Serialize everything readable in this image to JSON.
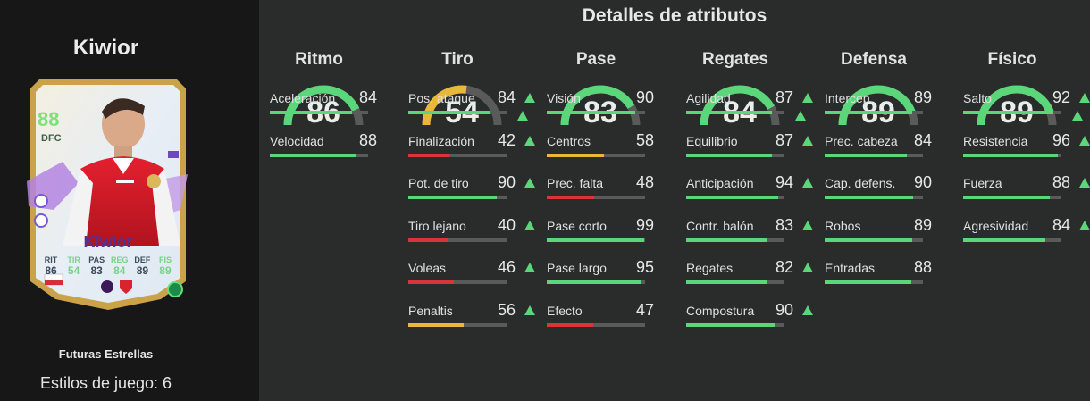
{
  "left": {
    "player_name": "Kiwior",
    "card": {
      "rating": "88",
      "position": "DFC",
      "name": "Kiwior",
      "stats": [
        {
          "label": "RIT",
          "value": "86"
        },
        {
          "label": "TIR",
          "value": "54"
        },
        {
          "label": "PAS",
          "value": "83"
        },
        {
          "label": "REG",
          "value": "84"
        },
        {
          "label": "DEF",
          "value": "89"
        },
        {
          "label": "FIS",
          "value": "89"
        }
      ]
    },
    "card_type": "Futuras Estrellas",
    "playstyles": "Estilos de juego: 6"
  },
  "main": {
    "title": "Detalles de atributos",
    "colors": {
      "green": "#5cd67a",
      "yellow": "#e8b83a",
      "red": "#d9343a",
      "track": "#5a5a5a"
    },
    "columns": [
      {
        "title": "Ritmo",
        "value": "86",
        "ratio": 0.86,
        "color": "green",
        "arrow": false,
        "stats": [
          {
            "label": "Aceleración",
            "value": "84",
            "ratio": 0.84,
            "color": "green",
            "arrow": false
          },
          {
            "label": "Velocidad",
            "value": "88",
            "ratio": 0.88,
            "color": "green",
            "arrow": false
          }
        ]
      },
      {
        "title": "Tiro",
        "value": "54",
        "ratio": 0.54,
        "color": "yellow",
        "arrow": true,
        "stats": [
          {
            "label": "Pos. ataque",
            "value": "84",
            "ratio": 0.84,
            "color": "green",
            "arrow": true
          },
          {
            "label": "Finalización",
            "value": "42",
            "ratio": 0.42,
            "color": "red",
            "arrow": true
          },
          {
            "label": "Pot. de tiro",
            "value": "90",
            "ratio": 0.9,
            "color": "green",
            "arrow": true
          },
          {
            "label": "Tiro lejano",
            "value": "40",
            "ratio": 0.4,
            "color": "red",
            "arrow": true
          },
          {
            "label": "Voleas",
            "value": "46",
            "ratio": 0.46,
            "color": "red",
            "arrow": true
          },
          {
            "label": "Penaltis",
            "value": "56",
            "ratio": 0.56,
            "color": "yellow",
            "arrow": true
          }
        ]
      },
      {
        "title": "Pase",
        "value": "83",
        "ratio": 0.83,
        "color": "green",
        "arrow": false,
        "stats": [
          {
            "label": "Visión",
            "value": "90",
            "ratio": 0.9,
            "color": "green",
            "arrow": false
          },
          {
            "label": "Centros",
            "value": "58",
            "ratio": 0.58,
            "color": "yellow",
            "arrow": false
          },
          {
            "label": "Prec. falta",
            "value": "48",
            "ratio": 0.48,
            "color": "red",
            "arrow": false
          },
          {
            "label": "Pase corto",
            "value": "99",
            "ratio": 0.99,
            "color": "green",
            "arrow": false
          },
          {
            "label": "Pase largo",
            "value": "95",
            "ratio": 0.95,
            "color": "green",
            "arrow": false
          },
          {
            "label": "Efecto",
            "value": "47",
            "ratio": 0.47,
            "color": "red",
            "arrow": false
          }
        ]
      },
      {
        "title": "Regates",
        "value": "84",
        "ratio": 0.84,
        "color": "green",
        "arrow": true,
        "stats": [
          {
            "label": "Agilidad",
            "value": "87",
            "ratio": 0.87,
            "color": "green",
            "arrow": true
          },
          {
            "label": "Equilibrio",
            "value": "87",
            "ratio": 0.87,
            "color": "green",
            "arrow": true
          },
          {
            "label": "Anticipación",
            "value": "94",
            "ratio": 0.94,
            "color": "green",
            "arrow": true
          },
          {
            "label": "Contr. balón",
            "value": "83",
            "ratio": 0.83,
            "color": "green",
            "arrow": true
          },
          {
            "label": "Regates",
            "value": "82",
            "ratio": 0.82,
            "color": "green",
            "arrow": true
          },
          {
            "label": "Compostura",
            "value": "90",
            "ratio": 0.9,
            "color": "green",
            "arrow": true
          }
        ]
      },
      {
        "title": "Defensa",
        "value": "89",
        "ratio": 0.89,
        "color": "green",
        "arrow": false,
        "stats": [
          {
            "label": "Intercep.",
            "value": "89",
            "ratio": 0.89,
            "color": "green",
            "arrow": false
          },
          {
            "label": "Prec. cabeza",
            "value": "84",
            "ratio": 0.84,
            "color": "green",
            "arrow": false
          },
          {
            "label": "Cap. defens.",
            "value": "90",
            "ratio": 0.9,
            "color": "green",
            "arrow": false
          },
          {
            "label": "Robos",
            "value": "89",
            "ratio": 0.89,
            "color": "green",
            "arrow": false
          },
          {
            "label": "Entradas",
            "value": "88",
            "ratio": 0.88,
            "color": "green",
            "arrow": false
          }
        ]
      },
      {
        "title": "Físico",
        "value": "89",
        "ratio": 0.89,
        "color": "green",
        "arrow": true,
        "stats": [
          {
            "label": "Salto",
            "value": "92",
            "ratio": 0.92,
            "color": "green",
            "arrow": true
          },
          {
            "label": "Resistencia",
            "value": "96",
            "ratio": 0.96,
            "color": "green",
            "arrow": true
          },
          {
            "label": "Fuerza",
            "value": "88",
            "ratio": 0.88,
            "color": "green",
            "arrow": true
          },
          {
            "label": "Agresividad",
            "value": "84",
            "ratio": 0.84,
            "color": "green",
            "arrow": true
          }
        ]
      }
    ]
  }
}
